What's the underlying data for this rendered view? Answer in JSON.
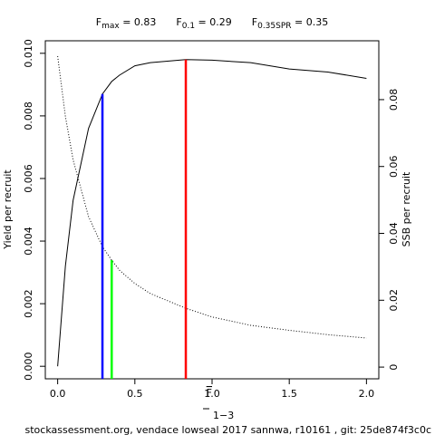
{
  "chart_data": {
    "type": "line",
    "title": [
      {
        "main": "F",
        "sub": "max",
        "rest": " = 0.83"
      },
      {
        "main": "F",
        "sub": "0.1",
        "rest": " = 0.29"
      },
      {
        "main": "F",
        "sub": "0.35SPR",
        "rest": " = 0.35"
      }
    ],
    "xlabel": {
      "main": "F",
      "sub": "1−3"
    },
    "ylabel": "Yield per recruit",
    "y2label": "SSB per recruit",
    "footnote": "stockassessment.org, vendace lowseal 2017 sannwa, r10161 , git: 25de874f3c0c",
    "x": [
      0,
      0.05,
      0.1,
      0.2,
      0.29,
      0.35,
      0.4,
      0.5,
      0.6,
      0.83,
      1.0,
      1.25,
      1.5,
      1.75,
      2.0
    ],
    "series": [
      {
        "name": "Yield per recruit",
        "color": "#000000",
        "dash": "solid",
        "axis": "y",
        "values": [
          0,
          0.0032,
          0.0053,
          0.0076,
          0.0087,
          0.0091,
          0.0093,
          0.0096,
          0.0097,
          0.0098,
          0.00978,
          0.0097,
          0.0095,
          0.0094,
          0.0092
        ]
      },
      {
        "name": "SSB per recruit",
        "color": "#000000",
        "dash": "dotted",
        "axis": "y2",
        "values": [
          0.093,
          0.075,
          0.062,
          0.045,
          0.036,
          0.032,
          0.029,
          0.025,
          0.022,
          0.0176,
          0.015,
          0.0125,
          0.011,
          0.0097,
          0.0087
        ]
      }
    ],
    "reference_lines": [
      {
        "x": 0.83,
        "y": 0.0098,
        "axis": "y",
        "color": "#ff0000"
      },
      {
        "x": 0.29,
        "y": 0.0087,
        "axis": "y",
        "color": "#0000ff"
      },
      {
        "x": 0.35,
        "y": 0.032,
        "axis": "y2",
        "color": "#00ff00"
      }
    ],
    "xlim": [
      -0.08,
      2.08
    ],
    "xticks": [
      {
        "value": 0,
        "label": "0.0"
      },
      0.5,
      {
        "value": 1,
        "label": "1.0"
      },
      1.5,
      {
        "value": 2,
        "label": "2.0"
      }
    ],
    "ylim": [
      -0.0004,
      0.0104
    ],
    "yticks": [
      {
        "value": 0,
        "label": "0.000"
      },
      {
        "value": 0.002,
        "label": "0.002"
      },
      {
        "value": 0.004,
        "label": "0.004"
      },
      {
        "value": 0.006,
        "label": "0.006"
      },
      {
        "value": 0.008,
        "label": "0.008"
      },
      {
        "value": 0.01,
        "label": "0.010"
      }
    ],
    "y2lim": [
      -0.0035,
      0.0976
    ],
    "y2ticks": [
      0,
      0.02,
      0.04,
      0.06,
      0.08
    ]
  }
}
